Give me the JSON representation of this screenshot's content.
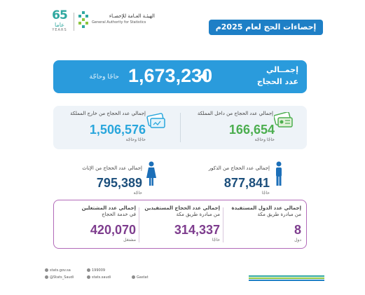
{
  "header": {
    "logo65": {
      "number": "65",
      "arabic": "عاما",
      "english": "YEARS"
    },
    "gastat": {
      "arabic": "الهيئـة العـامة للإحصـاء",
      "english": "General Authority for Statistics"
    },
    "title": "إحصاءات الحج لعام 2025م"
  },
  "hero": {
    "label_line1": "إجمــالي",
    "label_line2": "عدد الحجاج",
    "value": "1,673,230",
    "unit": "حاجًا وحاجّة"
  },
  "pilgrims": {
    "domestic": {
      "label": "إجمالي عدد الحجاج من داخل المملكة",
      "value": "166,654",
      "unit": "حاجًا وحاجّة",
      "icon": "id-card-icon"
    },
    "foreign": {
      "label": "إجمالي عدد الحجاج من خارج المملكة",
      "value": "1,506,576",
      "unit": "حاجًا وحاجّة",
      "icon": "passport-icon"
    }
  },
  "gender": {
    "male": {
      "label": "إجمالي عدد الحجاج من الذكور",
      "value": "877,841",
      "unit": "حاجًا",
      "icon": "male-icon"
    },
    "female": {
      "label": "إجمالي عدد الحجاج من الإناث",
      "value": "795,389",
      "unit": "حاجّة",
      "icon": "female-icon"
    }
  },
  "makkah_route": {
    "countries": {
      "label1": "إجمالي عدد الدول المستفيدة",
      "label2": "من مبادرة طريق مكة",
      "value": "8",
      "unit": "دول"
    },
    "beneficiaries": {
      "label1": "إجمالي عدد الحجاج المستفيدين",
      "label2": "من مبادرة طريق مكة",
      "value": "314,337",
      "unit": "حاجًا"
    },
    "employees": {
      "label1": "إجمالي عدد المشتغلين",
      "label2": "في خدمة الحجاج",
      "value": "420,070",
      "unit": "مشتغل"
    }
  },
  "footer": {
    "website": "stats.gov.sa",
    "phone": "199009",
    "twitter": "@Stats_Saudi",
    "instagram": "stats.saudi",
    "brand": "Gastat"
  },
  "colors": {
    "blue": "#1e7fc6",
    "hero_blue": "#2a9bdc",
    "green": "#4cae4f",
    "navy": "#1c4f7c",
    "purple": "#7e3d8e"
  }
}
